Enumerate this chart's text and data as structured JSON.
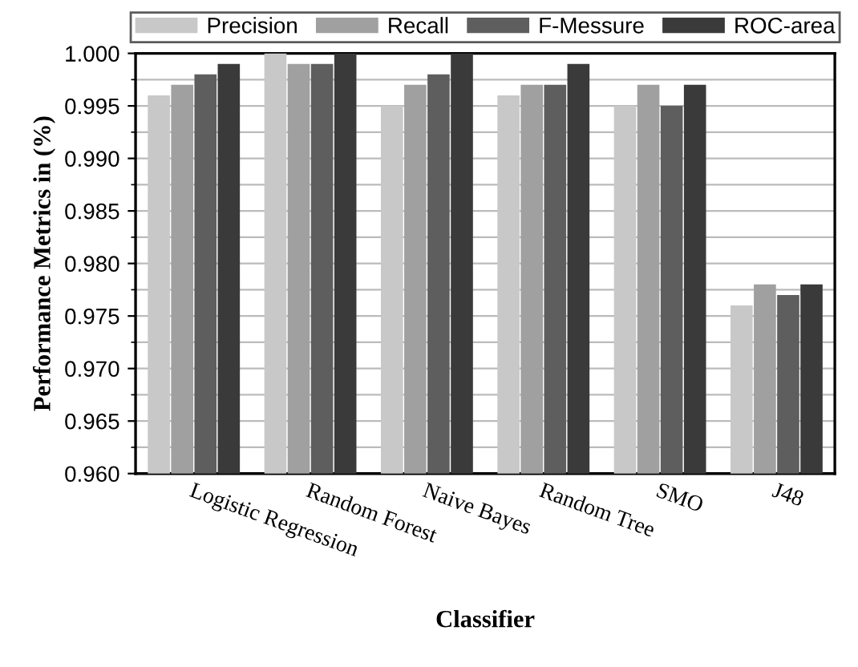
{
  "chart_data": {
    "type": "bar",
    "xlabel": "Classifier",
    "ylabel": "Performance Metrics in (%)",
    "categories": [
      "Logistic Regression",
      "Random Forest",
      "Naive Bayes",
      "Random Tree",
      "SMO",
      "J48"
    ],
    "series": [
      {
        "name": "Precision",
        "color": "#c8c8c8",
        "values": [
          0.996,
          1.0,
          0.995,
          0.996,
          0.995,
          0.976
        ]
      },
      {
        "name": "Recall",
        "color": "#a0a0a0",
        "values": [
          0.997,
          0.999,
          0.997,
          0.997,
          0.997,
          0.978
        ]
      },
      {
        "name": "F-Messure",
        "color": "#5e5e5e",
        "values": [
          0.998,
          0.999,
          0.998,
          0.997,
          0.995,
          0.977
        ]
      },
      {
        "name": "ROC-area",
        "color": "#3a3a3a",
        "values": [
          0.999,
          1.0,
          1.0,
          0.999,
          0.997,
          0.978
        ]
      }
    ],
    "ylim": [
      0.96,
      1.0
    ],
    "yticks": [
      {
        "value": 0.96,
        "label": "0.960"
      },
      {
        "value": 0.965,
        "label": "0.965"
      },
      {
        "value": 0.97,
        "label": "0.970"
      },
      {
        "value": 0.975,
        "label": "0.975"
      },
      {
        "value": 0.98,
        "label": "0.980"
      },
      {
        "value": 0.985,
        "label": "0.985"
      },
      {
        "value": 0.99,
        "label": "0.990"
      },
      {
        "value": 0.995,
        "label": "0.995"
      },
      {
        "value": 1.0,
        "label": "1.000"
      }
    ],
    "grid": "y",
    "legend": "top"
  }
}
